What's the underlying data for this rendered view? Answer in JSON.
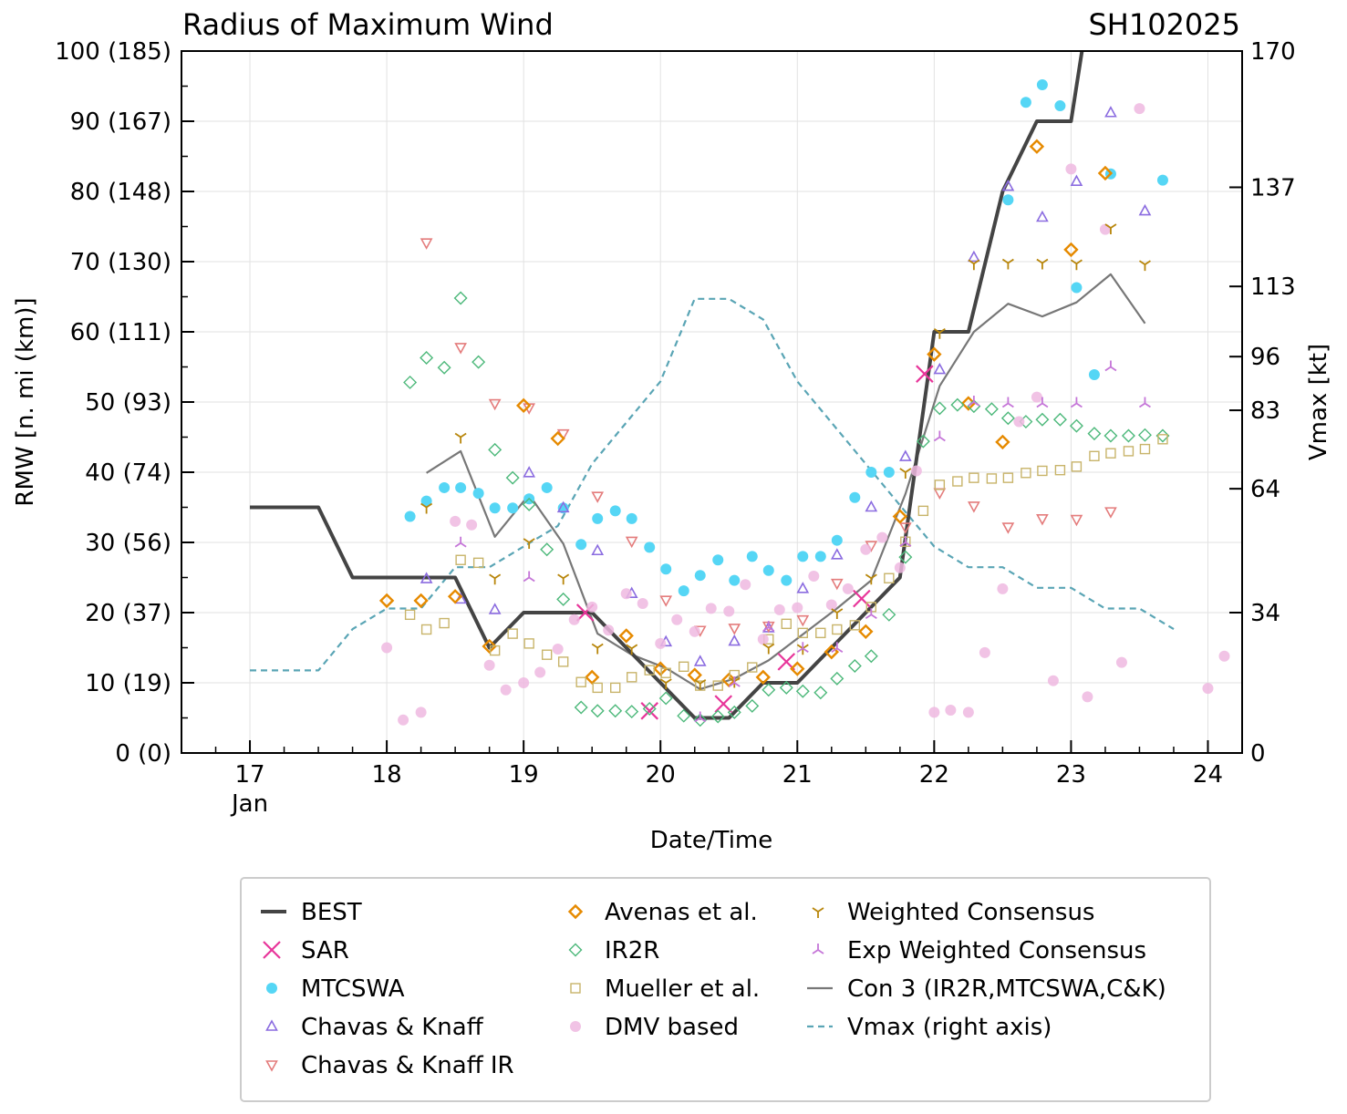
{
  "chart_data": {
    "type": "line",
    "title": "Radius of Maximum Wind",
    "title_right": "SH102025",
    "xlabel": "Date/Time",
    "ylabel": "RMW [n. mi (km)]",
    "ylabel_right": "Vmax [kt]",
    "x_units": "day of January 2025",
    "xlim": [
      16.5,
      24.25
    ],
    "ylim": [
      0,
      100
    ],
    "ylim_right": [
      0,
      170
    ],
    "x_ticks": [
      17,
      18,
      19,
      20,
      21,
      22,
      23,
      24
    ],
    "x_tick_labels": [
      "17",
      "18",
      "19",
      "20",
      "21",
      "22",
      "23",
      "24"
    ],
    "x_month_label": "Jan",
    "y_ticks": [
      0,
      10,
      20,
      30,
      40,
      50,
      60,
      70,
      80,
      90,
      100
    ],
    "y_tick_labels": [
      "0 (0)",
      "10 (19)",
      "20 (37)",
      "30 (56)",
      "40 (74)",
      "50 (93)",
      "60 (111)",
      "70 (130)",
      "80 (148)",
      "90 (167)",
      "100 (185)"
    ],
    "y_right_ticks": [
      0,
      34,
      64,
      83,
      96,
      113,
      137,
      170
    ],
    "y_right_tick_labels": [
      "0",
      "34",
      "64",
      "83",
      "96",
      "113",
      "137",
      "170"
    ],
    "grid": true,
    "legend_position": "below",
    "series": [
      {
        "name": "BEST",
        "kind": "line",
        "color": "#444444",
        "x": [
          17.0,
          17.5,
          17.75,
          18.0,
          18.25,
          18.5,
          18.75,
          19.0,
          19.25,
          19.5,
          19.75,
          20.0,
          20.25,
          20.5,
          20.75,
          21.0,
          21.25,
          21.5,
          21.75,
          22.0,
          22.25,
          22.5,
          22.75,
          23.0,
          23.08
        ],
        "y": [
          35,
          35,
          25,
          25,
          25,
          25,
          15,
          20,
          20,
          20,
          15,
          10,
          5,
          5,
          10,
          10,
          15,
          20,
          25,
          60,
          60,
          80,
          90,
          90,
          100
        ]
      },
      {
        "name": "SAR",
        "kind": "x",
        "color": "#e8359a",
        "x": [
          19.45,
          19.92,
          20.46,
          20.92,
          21.47,
          21.93
        ],
        "y": [
          20,
          6,
          7,
          13,
          22,
          54
        ]
      },
      {
        "name": "MTCSWA",
        "kind": "circle",
        "color": "#55d6f5",
        "x": [
          18.17,
          18.29,
          18.42,
          18.54,
          18.67,
          18.79,
          18.92,
          19.04,
          19.17,
          19.29,
          19.42,
          19.54,
          19.67,
          19.79,
          19.92,
          20.04,
          20.17,
          20.29,
          20.42,
          20.54,
          20.67,
          20.79,
          20.92,
          21.04,
          21.17,
          21.29,
          21.42,
          21.54,
          21.67,
          22.79,
          22.67,
          22.92,
          23.04,
          23.17,
          23.29,
          23.67,
          22.54
        ],
        "y": [
          33.7,
          35.9,
          37.8,
          37.8,
          37,
          34.9,
          34.9,
          36.2,
          37.8,
          34.9,
          29.7,
          33.4,
          34.5,
          33.4,
          29.3,
          26.2,
          23.1,
          25.3,
          27.5,
          24.6,
          28,
          26,
          24.6,
          28,
          28,
          30.3,
          36.4,
          40,
          40,
          95.2,
          92.7,
          92.2,
          66.3,
          53.9,
          82.5,
          81.6,
          78.8
        ]
      },
      {
        "name": "Chavas & Knaff",
        "kind": "tri_up",
        "color": "#8b6ce0",
        "x": [
          18.29,
          18.54,
          18.79,
          19.04,
          19.29,
          19.54,
          19.79,
          20.04,
          20.29,
          20.54,
          20.79,
          21.04,
          21.29,
          21.54,
          21.79,
          22.04,
          22.29,
          22.54,
          22.79,
          23.04,
          23.29,
          23.54
        ],
        "y": [
          24.8,
          21.9,
          20.4,
          39.9,
          34.9,
          28.8,
          22.7,
          15.8,
          13,
          15.9,
          17.8,
          23.4,
          28.2,
          35,
          42.2,
          54.6,
          70.6,
          80.7,
          76.3,
          81.4,
          91.2,
          77.2
        ]
      },
      {
        "name": "Chavas & Knaff IR",
        "kind": "tri_down",
        "color": "#e47c7c",
        "x": [
          18.29,
          18.54,
          18.79,
          19.04,
          19.29,
          19.54,
          19.79,
          20.04,
          20.29,
          20.54,
          20.79,
          21.04,
          21.29,
          21.54,
          21.79,
          22.04,
          22.29,
          22.54,
          22.79,
          23.04,
          23.29
        ],
        "y": [
          72.7,
          57.8,
          49.8,
          49.2,
          45.5,
          36.6,
          30.2,
          21.8,
          17.5,
          17.8,
          18.1,
          19,
          24.2,
          29.6,
          32.2,
          37.1,
          35.2,
          32.2,
          33.4,
          33.3,
          34.4
        ]
      },
      {
        "name": "Avenas et al.",
        "kind": "diamond",
        "color": "#e68a00",
        "x": [
          18.0,
          18.25,
          18.5,
          18.75,
          19.0,
          19.25,
          19.5,
          19.75,
          20.0,
          20.25,
          20.5,
          20.75,
          21.0,
          21.25,
          21.5,
          21.75,
          22.0,
          22.25,
          22.5,
          22.75,
          23.0,
          23.25
        ],
        "y": [
          21.7,
          21.7,
          22.3,
          15.2,
          49.5,
          44.8,
          10.8,
          16.7,
          12,
          11.1,
          10.4,
          10.8,
          12,
          14.4,
          17.3,
          33.7,
          56.8,
          49.8,
          44.3,
          86.4,
          71.7,
          82.6
        ]
      },
      {
        "name": "IR2R",
        "kind": "diamond_thin",
        "color": "#4cb87a",
        "x": [
          18.17,
          18.29,
          18.42,
          18.54,
          18.67,
          18.79,
          18.92,
          19.04,
          19.17,
          19.29,
          19.42,
          19.54,
          19.67,
          19.79,
          19.92,
          20.04,
          20.17,
          20.29,
          20.42,
          20.54,
          20.67,
          20.79,
          20.92,
          21.04,
          21.17,
          21.29,
          21.42,
          21.54,
          21.67,
          21.79,
          21.92,
          22.04,
          22.17,
          22.29,
          22.42,
          22.54,
          22.67,
          22.79,
          22.92,
          23.04,
          23.17,
          23.29,
          23.42,
          23.54,
          23.67
        ],
        "y": [
          52.8,
          56.3,
          54.9,
          64.8,
          55.7,
          43.2,
          39.2,
          35.4,
          29,
          21.9,
          6.5,
          6,
          6,
          5.9,
          6.3,
          7.8,
          5.3,
          4.7,
          5.2,
          5.8,
          6.7,
          9,
          9.3,
          8.8,
          8.6,
          10.6,
          12.4,
          13.8,
          19.7,
          27.9,
          44.4,
          49.1,
          49.6,
          49.4,
          49,
          47.7,
          47.2,
          47.5,
          47.5,
          46.6,
          45.5,
          45.2,
          45.2,
          45.3,
          45.2
        ]
      },
      {
        "name": "Mueller et al.",
        "kind": "square",
        "color": "#c8b46a",
        "x": [
          18.17,
          18.29,
          18.42,
          18.54,
          18.67,
          18.79,
          18.92,
          19.04,
          19.17,
          19.29,
          19.42,
          19.54,
          19.67,
          19.79,
          19.92,
          20.04,
          20.17,
          20.29,
          20.42,
          20.54,
          20.67,
          20.79,
          20.92,
          21.04,
          21.17,
          21.29,
          21.42,
          21.54,
          21.67,
          21.79,
          21.92,
          22.04,
          22.17,
          22.29,
          22.42,
          22.54,
          22.67,
          22.79,
          22.92,
          23.04,
          23.17,
          23.29,
          23.42,
          23.54,
          23.67
        ],
        "y": [
          19.7,
          17.6,
          18.5,
          27.5,
          27.1,
          14.6,
          17,
          15.6,
          14,
          13,
          10.1,
          9.3,
          9.3,
          10.8,
          11.8,
          11.4,
          12.3,
          9.6,
          9.6,
          11.1,
          12.2,
          16.2,
          18.4,
          17.1,
          17.1,
          17.6,
          18.2,
          20.8,
          24.9,
          30.1,
          34.5,
          38.2,
          38.7,
          39.2,
          39.1,
          39.2,
          39.9,
          40.2,
          40.3,
          40.8,
          42.3,
          42.7,
          43,
          43.3,
          44.7
        ]
      },
      {
        "name": "DMV based",
        "kind": "circle_light",
        "color": "#eeb8e0",
        "x": [
          18.0,
          18.12,
          18.25,
          18.5,
          18.62,
          18.75,
          18.87,
          19.0,
          19.12,
          19.25,
          19.37,
          19.5,
          19.62,
          19.75,
          19.87,
          20.0,
          20.12,
          20.25,
          20.37,
          20.5,
          20.62,
          20.75,
          20.87,
          21.0,
          21.12,
          21.25,
          21.37,
          21.5,
          21.62,
          21.75,
          21.87,
          22.0,
          22.12,
          22.25,
          22.37,
          22.5,
          22.62,
          22.75,
          22.87,
          23.0,
          23.12,
          23.25,
          23.37,
          23.5,
          24.0,
          24.12
        ],
        "y": [
          15,
          4.7,
          5.8,
          33,
          32.5,
          12.5,
          9,
          10,
          11.5,
          14.8,
          19,
          20.8,
          17.5,
          22.7,
          21.3,
          15.6,
          19,
          17.3,
          20.6,
          20.2,
          24,
          16.2,
          20.4,
          20.7,
          25.2,
          21.1,
          23.4,
          29,
          30.7,
          26.4,
          40.2,
          5.8,
          6.1,
          5.8,
          14.3,
          23.4,
          47.2,
          50.7,
          10.3,
          83.2,
          8,
          74.6,
          12.9,
          91.8,
          9.2,
          13.8
        ]
      },
      {
        "name": "Weighted Consensus",
        "kind": "y_down",
        "color": "#b8860b",
        "x": [
          18.29,
          18.54,
          18.79,
          19.04,
          19.29,
          19.54,
          19.79,
          20.04,
          20.29,
          20.54,
          20.79,
          21.04,
          21.29,
          21.54,
          21.79,
          22.04,
          22.29,
          22.54,
          22.79,
          23.04,
          23.29,
          23.54
        ],
        "y": [
          35,
          45,
          24.9,
          30,
          24.9,
          15,
          14.9,
          10,
          9.9,
          10.2,
          15,
          14.9,
          20,
          24.9,
          40,
          59.9,
          69.7,
          69.8,
          69.8,
          69.7,
          74.8,
          69.6
        ]
      },
      {
        "name": "Exp Weighted Consensus",
        "kind": "y_up",
        "color": "#c576d8",
        "x": [
          18.54,
          19.04,
          20.29,
          20.54,
          20.79,
          21.04,
          21.29,
          21.54,
          21.79,
          22.04,
          22.29,
          22.54,
          22.79,
          23.04,
          23.29,
          23.54
        ],
        "y": [
          29.9,
          25,
          5,
          10,
          17.9,
          14.9,
          14.9,
          19.7,
          30,
          45,
          50,
          49.8,
          49.8,
          49.8,
          55,
          49.8
        ]
      },
      {
        "name": "Con 3 (IR2R,MTCSWA,C&K)",
        "kind": "line",
        "color": "#777777",
        "x": [
          18.29,
          18.54,
          18.79,
          19.04,
          19.29,
          19.54,
          19.79,
          20.04,
          20.29,
          20.54,
          20.79,
          21.04,
          21.29,
          21.54,
          21.79,
          22.04,
          22.29,
          22.54,
          22.79,
          23.04,
          23.29,
          23.54
        ],
        "y": [
          39.9,
          43,
          30.8,
          36.8,
          29.8,
          17,
          14,
          12.1,
          9.1,
          10.6,
          13.2,
          16.9,
          20.6,
          24.6,
          36.9,
          52.3,
          60,
          64,
          62.2,
          64.2,
          68.2,
          61.2
        ]
      },
      {
        "name": "Vmax (right axis)",
        "kind": "dashed",
        "color": "#5aa5b5",
        "axis": "right",
        "x": [
          17.0,
          17.5,
          17.75,
          18.0,
          18.25,
          18.5,
          18.75,
          19.0,
          19.25,
          19.5,
          19.75,
          20.0,
          20.25,
          20.5,
          20.75,
          21.0,
          21.25,
          21.5,
          21.75,
          22.0,
          22.25,
          22.5,
          22.75,
          23.0,
          23.25,
          23.5,
          23.75
        ],
        "y": [
          20,
          20,
          30,
          35,
          35,
          45,
          45,
          50,
          55,
          70,
          80,
          90,
          110,
          110,
          105,
          90,
          80,
          70,
          60,
          50,
          45,
          45,
          40,
          40,
          35,
          35,
          30
        ]
      }
    ]
  }
}
